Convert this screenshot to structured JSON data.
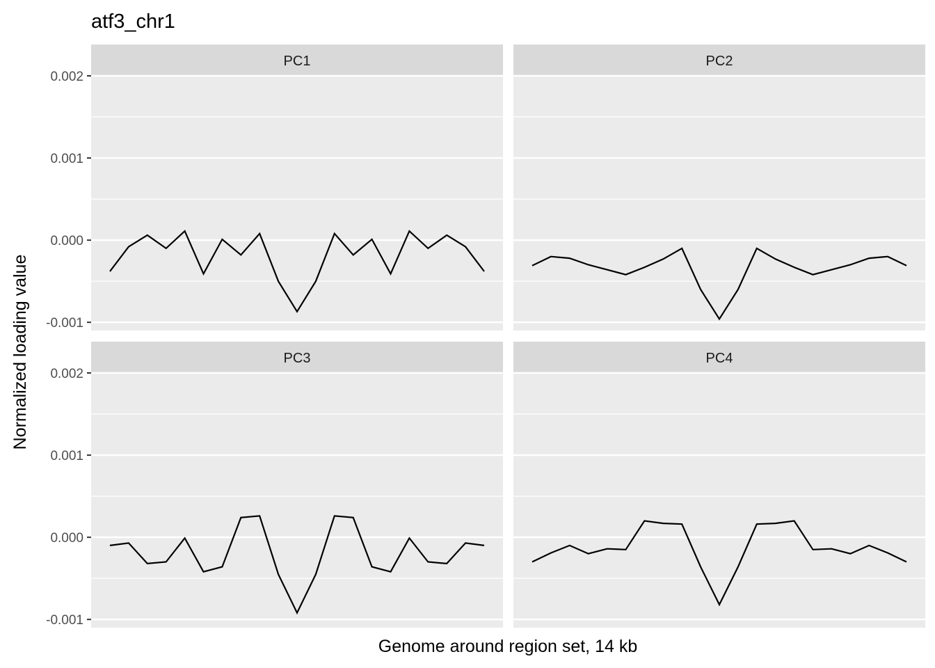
{
  "chart_data": {
    "type": "line",
    "title": "atf3_chr1",
    "xlabel": "Genome around region set, 14 kb",
    "ylabel": "Normalized loading value",
    "ylim": [
      -0.0011,
      0.002
    ],
    "yticks": [
      -0.001,
      0.0,
      0.001,
      0.002
    ],
    "ytick_labels": [
      "-0.001",
      "0.000",
      "0.001",
      "0.002"
    ],
    "x_ticks_shown": false,
    "grid": true,
    "legend": "none",
    "line_color": "#000000",
    "panel_background": "#ebebeb",
    "strip_background": "#d9d9d9",
    "x": [
      1,
      2,
      3,
      4,
      5,
      6,
      7,
      8,
      9,
      10,
      11,
      12,
      13,
      14,
      15,
      16,
      17,
      18,
      19,
      20,
      21
    ],
    "facets": [
      {
        "name": "PC1",
        "values": [
          -0.00038,
          -8e-05,
          6e-05,
          -0.0001,
          0.00011,
          -0.00041,
          1e-05,
          -0.00018,
          8e-05,
          -0.0005,
          -0.00087,
          -0.0005,
          8e-05,
          -0.00018,
          1e-05,
          -0.00041,
          0.00011,
          -0.0001,
          6e-05,
          -8e-05,
          -0.00038
        ]
      },
      {
        "name": "PC2",
        "values": [
          -0.00031,
          -0.0002,
          -0.00022,
          -0.0003,
          -0.00036,
          -0.00042,
          -0.00033,
          -0.00023,
          -0.0001,
          -0.0006,
          -0.00096,
          -0.0006,
          -0.0001,
          -0.00023,
          -0.00033,
          -0.00042,
          -0.00036,
          -0.0003,
          -0.00022,
          -0.0002,
          -0.00031
        ]
      },
      {
        "name": "PC3",
        "values": [
          -0.0001,
          -7e-05,
          -0.00032,
          -0.0003,
          -1e-05,
          -0.00042,
          -0.00036,
          0.00024,
          0.00026,
          -0.00045,
          -0.00092,
          -0.00045,
          0.00026,
          0.00024,
          -0.00036,
          -0.00042,
          -1e-05,
          -0.0003,
          -0.00032,
          -7e-05,
          -0.0001
        ]
      },
      {
        "name": "PC4",
        "values": [
          -0.0003,
          -0.00019,
          -0.0001,
          -0.0002,
          -0.00014,
          -0.00015,
          0.0002,
          0.00017,
          0.00016,
          -0.00036,
          -0.00082,
          -0.00036,
          0.00016,
          0.00017,
          0.0002,
          -0.00015,
          -0.00014,
          -0.0002,
          -0.0001,
          -0.00019,
          -0.0003
        ]
      }
    ]
  }
}
